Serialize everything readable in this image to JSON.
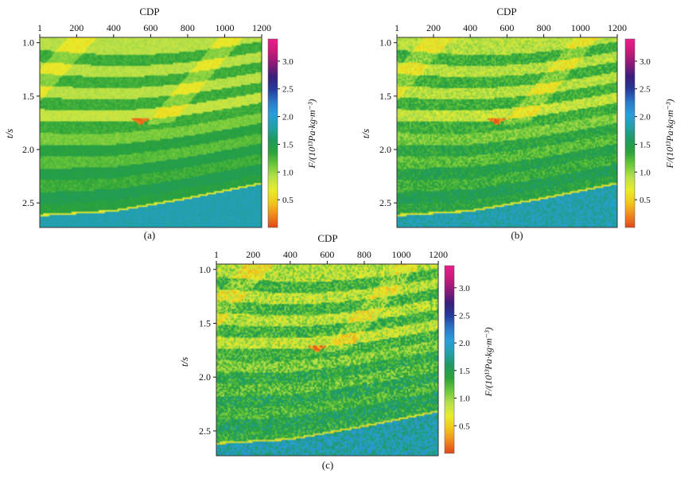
{
  "chart_data": {
    "type": "heatmap",
    "description_labels": {
      "x_label": "CDP",
      "y_label": "t/s"
    },
    "colorbar": {
      "label": "F/(10¹³Pa·kg·m⁻³)",
      "ticks": [
        "0.5",
        "1.0",
        "1.5",
        "2.0",
        "2.5",
        "3.0"
      ],
      "tick_values": [
        0.5,
        1.0,
        1.5,
        2.0,
        2.5,
        3.0
      ],
      "range": [
        0.0,
        3.4
      ],
      "colors": [
        "#e0481a",
        "#f08a1c",
        "#f0c81c",
        "#e8ec2a",
        "#b8e04a",
        "#6cc83a",
        "#2ba23a",
        "#1f9a60",
        "#22a0a8",
        "#2a9ed8",
        "#2b78c8",
        "#263a9a",
        "#3a1e7a",
        "#8a1a78",
        "#c81a78",
        "#e91e8c"
      ]
    },
    "panels": [
      {
        "caption": "(a)",
        "xticks": [
          "1",
          "200",
          "400",
          "600",
          "800",
          "1000",
          "1200"
        ],
        "xtick_values": [
          1,
          200,
          400,
          600,
          800,
          1000,
          1200
        ],
        "yticks": [
          "1.0",
          "1.5",
          "2.0",
          "2.5"
        ],
        "ytick_values": [
          1.0,
          1.5,
          2.0,
          2.5
        ],
        "xlim": [
          1,
          1200
        ],
        "ylim": [
          0.95,
          2.73
        ],
        "noise": 0.15
      },
      {
        "caption": "(b)",
        "xticks": [
          "1",
          "200",
          "400",
          "600",
          "800",
          "1000",
          "1200"
        ],
        "xtick_values": [
          1,
          200,
          400,
          600,
          800,
          1000,
          1200
        ],
        "yticks": [
          "1.0",
          "1.5",
          "2.0",
          "2.5"
        ],
        "ytick_values": [
          1.0,
          1.5,
          2.0,
          2.5
        ],
        "xlim": [
          1,
          1200
        ],
        "ylim": [
          0.95,
          2.73
        ],
        "noise": 0.35
      },
      {
        "caption": "(c)",
        "xticks": [
          "1",
          "200",
          "400",
          "600",
          "800",
          "1000",
          "1200"
        ],
        "xtick_values": [
          1,
          200,
          400,
          600,
          800,
          1000,
          1200
        ],
        "yticks": [
          "1.0",
          "1.5",
          "2.0",
          "2.5"
        ],
        "ytick_values": [
          1.0,
          1.5,
          2.0,
          2.5
        ],
        "xlim": [
          1,
          1200
        ],
        "ylim": [
          0.95,
          2.73
        ],
        "noise": 0.6
      }
    ],
    "model": {
      "layer_values_top_to_bottom": [
        0.9,
        1.3,
        0.9,
        1.3,
        0.9,
        1.3,
        0.85,
        1.3,
        1.1,
        1.4,
        1.2,
        1.45,
        1.3,
        1.5,
        1.4
      ],
      "lens_anomaly": {
        "cdp": [
          490,
          600
        ],
        "t": [
          1.7,
          1.77
        ],
        "value": 0.15
      },
      "basement_value": 1.85,
      "basement_top_t": [
        [
          1,
          2.63
        ],
        [
          400,
          2.59
        ],
        [
          800,
          2.47
        ],
        [
          1200,
          2.33
        ]
      ]
    }
  }
}
